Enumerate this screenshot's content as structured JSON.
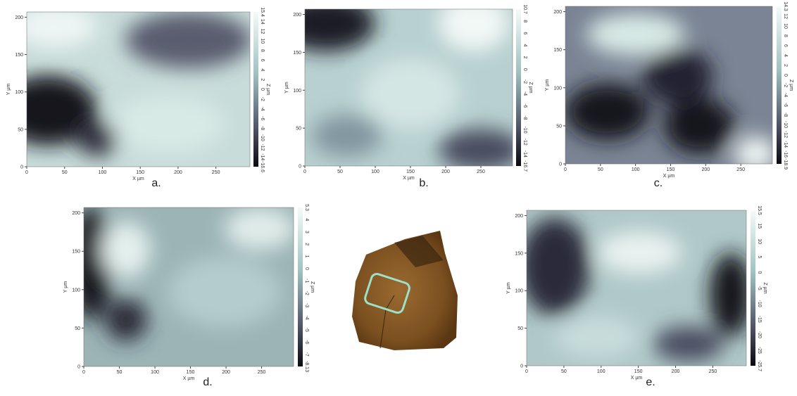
{
  "panels": [
    {
      "caption": "a.",
      "x_label": "X µm",
      "y_label": "Y µm",
      "z_label": "Z µm",
      "xticks": [
        "0",
        "50",
        "100",
        "150",
        "200",
        "250"
      ],
      "yticks": [
        "0",
        "50",
        "100",
        "150",
        "200"
      ],
      "zticks": [
        "15.4",
        "14",
        "12",
        "10",
        "8",
        "6",
        "4",
        "2",
        "0",
        "-2",
        "-4",
        "-6",
        "-8",
        "-10",
        "-12",
        "-14",
        "-16.6"
      ]
    },
    {
      "caption": "b.",
      "x_label": "X µm",
      "y_label": "Y µm",
      "z_label": "Z µm",
      "xticks": [
        "0",
        "50",
        "100",
        "150",
        "200",
        "250"
      ],
      "yticks": [
        "0",
        "50",
        "100",
        "150",
        "200"
      ],
      "zticks": [
        "10.7",
        "8",
        "6",
        "4",
        "2",
        "0",
        "-2",
        "-4",
        "-6",
        "-8",
        "-10",
        "-12",
        "-14",
        "-16.7"
      ]
    },
    {
      "caption": "c.",
      "x_label": "X µm",
      "y_label": "Y µm",
      "z_label": "Z µm",
      "xticks": [
        "0",
        "50",
        "100",
        "150",
        "200",
        "250"
      ],
      "yticks": [
        "0",
        "50",
        "100",
        "150",
        "200"
      ],
      "zticks": [
        "14.3",
        "12",
        "10",
        "8",
        "6",
        "4",
        "2",
        "0",
        "-2",
        "-4",
        "-6",
        "-8",
        "-10",
        "-12",
        "-14",
        "-16",
        "-18.9"
      ]
    },
    {
      "caption": "d.",
      "x_label": "X µm",
      "y_label": "Y µm",
      "z_label": "Z µm",
      "xticks": [
        "0",
        "50",
        "100",
        "150",
        "200",
        "250"
      ],
      "yticks": [
        "0",
        "50",
        "100",
        "150",
        "200"
      ],
      "zticks": [
        "5.3",
        "4",
        "3",
        "2",
        "1",
        "0",
        "-1",
        "-2",
        "-3",
        "-4",
        "-5",
        "-6",
        "-7",
        "-8.13"
      ]
    },
    {
      "caption": "e.",
      "x_label": "X µm",
      "y_label": "Y µm",
      "z_label": "Z µm",
      "xticks": [
        "0",
        "50",
        "100",
        "150",
        "200",
        "250"
      ],
      "yticks": [
        "0",
        "50",
        "100",
        "150",
        "200"
      ],
      "zticks": [
        "15.5",
        "15",
        "10",
        "5",
        "0",
        "-5",
        "-10",
        "-15",
        "-20",
        "-25",
        "-25.7"
      ]
    }
  ]
}
